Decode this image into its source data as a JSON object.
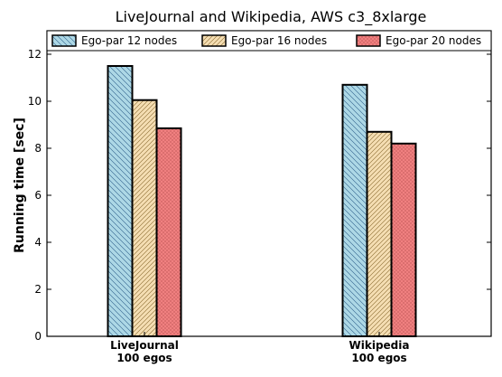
{
  "chart_data": {
    "type": "bar",
    "title": "LiveJournal and Wikipedia, AWS c3_8xlarge",
    "xlabel": "",
    "ylabel": "Running time [sec]",
    "ylim": [
      0,
      13
    ],
    "yticks": [
      0,
      2,
      4,
      6,
      8,
      10,
      12
    ],
    "grid": false,
    "legend_placement": "top",
    "categories": [
      [
        "LiveJournal",
        "100 egos"
      ],
      [
        "Wikipedia",
        "100 egos"
      ]
    ],
    "series": [
      {
        "name": "Ego-par 12 nodes",
        "values": [
          11.5,
          10.7
        ],
        "color": "#add8e6",
        "hatch": "diagonal-back"
      },
      {
        "name": "Ego-par 16 nodes",
        "values": [
          10.05,
          8.7
        ],
        "color": "#f5deb3",
        "hatch": "diagonal-forward"
      },
      {
        "name": "Ego-par 20 nodes",
        "values": [
          8.85,
          8.2
        ],
        "color": "#f08080",
        "hatch": "dots"
      }
    ]
  }
}
